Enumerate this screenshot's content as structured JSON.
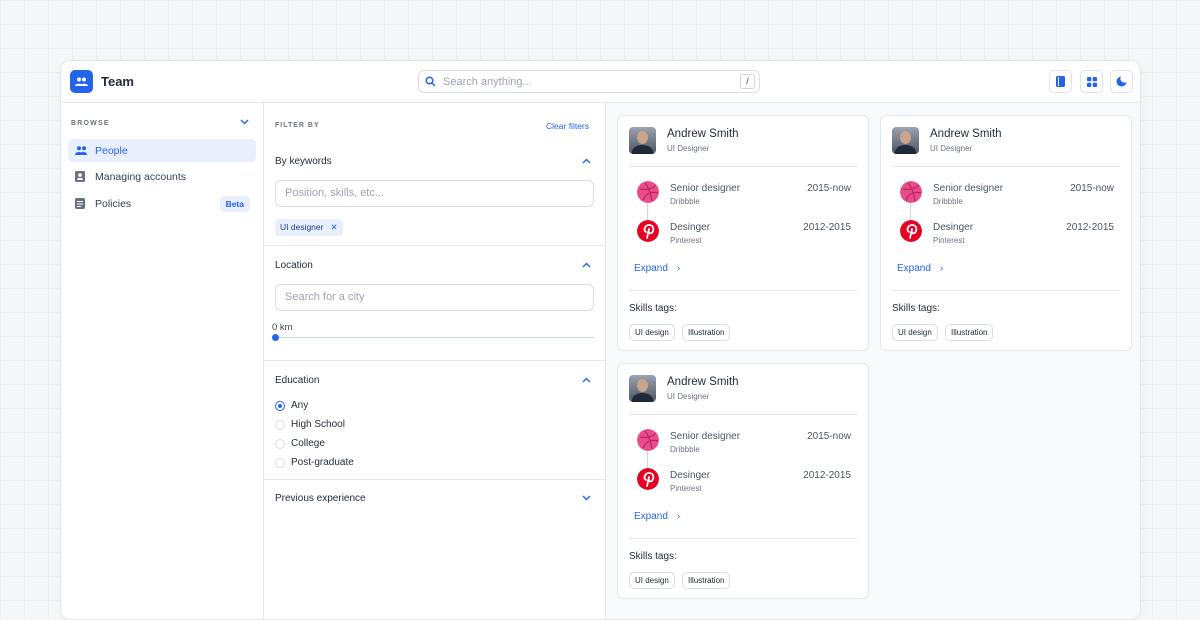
{
  "header": {
    "title": "Team",
    "search_placeholder": "Search anything...",
    "search_shortcut": "/",
    "icons": [
      "book-icon",
      "grid-icon",
      "moon-icon"
    ]
  },
  "colors": {
    "accent": "#2563eb",
    "dribbble": "#ea4c89",
    "pinterest": "#e60023"
  },
  "sidebar": {
    "section": "BROWSE",
    "items": [
      {
        "label": "People",
        "active": true
      },
      {
        "label": "Managing accounts"
      },
      {
        "label": "Policies",
        "badge": "Beta"
      }
    ]
  },
  "filters": {
    "title": "FILTER BY",
    "clear": "Clear filters",
    "keywords": {
      "label": "By keywords",
      "placeholder": "Position, skills, etc...",
      "chips": [
        "UI designer"
      ]
    },
    "location": {
      "label": "Location",
      "placeholder": "Search for a city",
      "distance": "0 km",
      "slider_value": 0
    },
    "education": {
      "label": "Education",
      "options": [
        "Any",
        "High School",
        "College",
        "Post-graduate"
      ],
      "selected": "Any"
    },
    "experience": {
      "label": "Previous experience"
    }
  },
  "cards": [
    {
      "name": "Andrew Smith",
      "role": "UI Designer",
      "jobs": [
        {
          "title": "Senior designer",
          "company": "Dribbble",
          "dates": "2015-now"
        },
        {
          "title": "Desinger",
          "company": "Pinterest",
          "dates": "2012-2015"
        }
      ],
      "expand": "Expand",
      "skills_label": "Skills tags:",
      "skills": [
        "UI design",
        "Illustration"
      ]
    },
    {
      "name": "Andrew Smith",
      "role": "UI Designer",
      "jobs": [
        {
          "title": "Senior designer",
          "company": "Dribbble",
          "dates": "2015-now"
        },
        {
          "title": "Desinger",
          "company": "Pinterest",
          "dates": "2012-2015"
        }
      ],
      "expand": "Expand",
      "skills_label": "Skills tags:",
      "skills": [
        "UI design",
        "Illustration"
      ]
    },
    {
      "name": "Andrew Smith",
      "role": "UI Designer",
      "jobs": [
        {
          "title": "Senior designer",
          "company": "Dribbble",
          "dates": "2015-now"
        },
        {
          "title": "Desinger",
          "company": "Pinterest",
          "dates": "2012-2015"
        }
      ],
      "expand": "Expand",
      "skills_label": "Skills tags:",
      "skills": [
        "UI design",
        "Illustration"
      ]
    }
  ]
}
